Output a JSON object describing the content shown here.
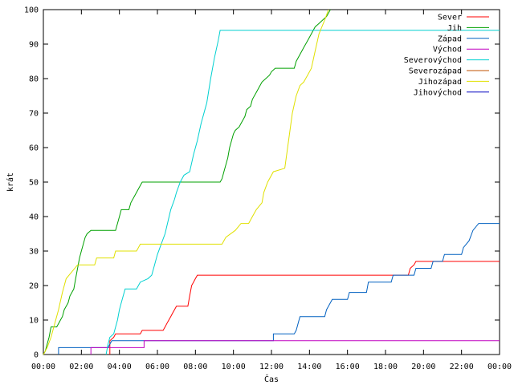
{
  "chart_data": {
    "type": "line",
    "xlabel": "Čas",
    "ylabel": "krát",
    "xlim": [
      0,
      24
    ],
    "ylim": [
      0,
      100
    ],
    "x_ticks": [
      {
        "value": 0,
        "label": "00:00"
      },
      {
        "value": 2,
        "label": "02:00"
      },
      {
        "value": 4,
        "label": "04:00"
      },
      {
        "value": 6,
        "label": "06:00"
      },
      {
        "value": 8,
        "label": "08:00"
      },
      {
        "value": 10,
        "label": "10:00"
      },
      {
        "value": 12,
        "label": "12:00"
      },
      {
        "value": 14,
        "label": "14:00"
      },
      {
        "value": 16,
        "label": "16:00"
      },
      {
        "value": 18,
        "label": "18:00"
      },
      {
        "value": 20,
        "label": "20:00"
      },
      {
        "value": 22,
        "label": "22:00"
      },
      {
        "value": 24,
        "label": "00:00"
      }
    ],
    "y_ticks": [
      0,
      10,
      20,
      30,
      40,
      50,
      60,
      70,
      80,
      90,
      100
    ],
    "grid": false,
    "legend_position": "top-right",
    "series": [
      {
        "name": "Sever",
        "color": "#ff0000",
        "points": [
          [
            3.5,
            0
          ],
          [
            3.5,
            4
          ],
          [
            3.7,
            5
          ],
          [
            3.8,
            6
          ],
          [
            5.1,
            6
          ],
          [
            5.2,
            7
          ],
          [
            6.3,
            7
          ],
          [
            6.4,
            8
          ],
          [
            6.5,
            9
          ],
          [
            6.6,
            10
          ],
          [
            6.7,
            11
          ],
          [
            6.8,
            12
          ],
          [
            6.9,
            13
          ],
          [
            7,
            14
          ],
          [
            7.6,
            14
          ],
          [
            7.7,
            17
          ],
          [
            7.8,
            20
          ],
          [
            7.9,
            21
          ],
          [
            8,
            22
          ],
          [
            8.1,
            23
          ],
          [
            19.2,
            23
          ],
          [
            19.3,
            25
          ],
          [
            19.5,
            26
          ],
          [
            19.6,
            27
          ],
          [
            24,
            27
          ]
        ]
      },
      {
        "name": "Jih",
        "color": "#00a000",
        "points": [
          [
            0,
            0
          ],
          [
            0.1,
            1
          ],
          [
            0.2,
            3
          ],
          [
            0.3,
            5
          ],
          [
            0.4,
            8
          ],
          [
            0.7,
            8
          ],
          [
            0.9,
            10
          ],
          [
            1,
            11
          ],
          [
            1.1,
            13
          ],
          [
            1.3,
            15
          ],
          [
            1.4,
            17
          ],
          [
            1.6,
            19
          ],
          [
            1.7,
            22
          ],
          [
            1.8,
            25
          ],
          [
            1.9,
            28
          ],
          [
            2,
            30
          ],
          [
            2.1,
            32
          ],
          [
            2.2,
            34
          ],
          [
            2.3,
            35
          ],
          [
            2.5,
            36
          ],
          [
            3.8,
            36
          ],
          [
            3.9,
            38
          ],
          [
            4,
            40
          ],
          [
            4.1,
            42
          ],
          [
            4.5,
            42
          ],
          [
            4.6,
            44
          ],
          [
            4.8,
            46
          ],
          [
            4.9,
            47
          ],
          [
            5,
            48
          ],
          [
            5.1,
            49
          ],
          [
            5.2,
            50
          ],
          [
            9.3,
            50
          ],
          [
            9.4,
            51
          ],
          [
            9.5,
            53
          ],
          [
            9.6,
            55
          ],
          [
            9.7,
            57
          ],
          [
            9.8,
            60
          ],
          [
            9.9,
            62
          ],
          [
            10,
            64
          ],
          [
            10.1,
            65
          ],
          [
            10.3,
            66
          ],
          [
            10.4,
            67
          ],
          [
            10.6,
            69
          ],
          [
            10.7,
            71
          ],
          [
            10.9,
            72
          ],
          [
            11,
            74
          ],
          [
            11.2,
            76
          ],
          [
            11.4,
            78
          ],
          [
            11.5,
            79
          ],
          [
            11.7,
            80
          ],
          [
            11.9,
            81
          ],
          [
            12,
            82
          ],
          [
            12.2,
            83
          ],
          [
            13.2,
            83
          ],
          [
            13.3,
            85
          ],
          [
            13.5,
            87
          ],
          [
            13.7,
            89
          ],
          [
            13.9,
            91
          ],
          [
            14.1,
            93
          ],
          [
            14.3,
            95
          ],
          [
            14.5,
            96
          ],
          [
            14.7,
            97
          ],
          [
            14.9,
            98
          ],
          [
            15.1,
            100
          ]
        ]
      },
      {
        "name": "Západ",
        "color": "#0060c0",
        "points": [
          [
            0.8,
            0
          ],
          [
            0.8,
            2
          ],
          [
            3.4,
            2
          ],
          [
            3.5,
            3
          ],
          [
            3.6,
            4
          ],
          [
            12.1,
            4
          ],
          [
            12.1,
            6
          ],
          [
            13.2,
            6
          ],
          [
            13.3,
            7
          ],
          [
            13.5,
            11
          ],
          [
            14.8,
            11
          ],
          [
            14.9,
            13
          ],
          [
            15.2,
            16
          ],
          [
            16,
            16
          ],
          [
            16.1,
            18
          ],
          [
            17,
            18
          ],
          [
            17.1,
            21
          ],
          [
            18.3,
            21
          ],
          [
            18.4,
            23
          ],
          [
            19.5,
            23
          ],
          [
            19.6,
            25
          ],
          [
            20.4,
            25
          ],
          [
            20.5,
            27
          ],
          [
            21,
            27
          ],
          [
            21.1,
            29
          ],
          [
            22,
            29
          ],
          [
            22.1,
            31
          ],
          [
            22.4,
            33
          ],
          [
            22.6,
            36
          ],
          [
            22.9,
            38
          ],
          [
            24,
            38
          ]
        ]
      },
      {
        "name": "Východ",
        "color": "#c000c0",
        "points": [
          [
            2.5,
            0
          ],
          [
            2.5,
            2
          ],
          [
            5.3,
            2
          ],
          [
            5.3,
            4
          ],
          [
            24,
            4
          ]
        ]
      },
      {
        "name": "Severovýchod",
        "color": "#00d0d0",
        "points": [
          [
            3.3,
            0
          ],
          [
            3.4,
            3
          ],
          [
            3.5,
            5
          ],
          [
            3.7,
            6
          ],
          [
            3.9,
            10
          ],
          [
            4,
            13
          ],
          [
            4.1,
            15
          ],
          [
            4.2,
            17
          ],
          [
            4.3,
            19
          ],
          [
            4.9,
            19
          ],
          [
            5.1,
            21
          ],
          [
            5.5,
            22
          ],
          [
            5.7,
            23
          ],
          [
            5.8,
            25
          ],
          [
            6,
            29
          ],
          [
            6.2,
            32
          ],
          [
            6.4,
            35
          ],
          [
            6.7,
            42
          ],
          [
            6.9,
            45
          ],
          [
            7,
            47
          ],
          [
            7.2,
            50
          ],
          [
            7.4,
            52
          ],
          [
            7.7,
            53
          ],
          [
            7.9,
            58
          ],
          [
            8.1,
            62
          ],
          [
            8.3,
            67
          ],
          [
            8.6,
            73
          ],
          [
            8.8,
            80
          ],
          [
            9,
            86
          ],
          [
            9.2,
            91
          ],
          [
            9.3,
            94
          ],
          [
            24,
            94
          ]
        ]
      },
      {
        "name": "Severozápad",
        "color": "#c05000",
        "points": []
      },
      {
        "name": "Jihozápad",
        "color": "#e0e000",
        "points": [
          [
            0,
            0
          ],
          [
            0.2,
            2
          ],
          [
            0.4,
            5
          ],
          [
            0.6,
            9
          ],
          [
            0.8,
            13
          ],
          [
            1,
            18
          ],
          [
            1.2,
            22
          ],
          [
            1.5,
            24
          ],
          [
            1.8,
            26
          ],
          [
            2.7,
            26
          ],
          [
            2.8,
            28
          ],
          [
            3.7,
            28
          ],
          [
            3.8,
            30
          ],
          [
            4.9,
            30
          ],
          [
            5.1,
            32
          ],
          [
            9.4,
            32
          ],
          [
            9.6,
            34
          ],
          [
            10.1,
            36
          ],
          [
            10.4,
            38
          ],
          [
            10.8,
            38
          ],
          [
            11,
            40
          ],
          [
            11.2,
            42
          ],
          [
            11.5,
            44
          ],
          [
            11.6,
            47
          ],
          [
            11.8,
            50
          ],
          [
            12.1,
            53
          ],
          [
            12.7,
            54
          ],
          [
            12.9,
            62
          ],
          [
            13.1,
            70
          ],
          [
            13.3,
            75
          ],
          [
            13.5,
            78
          ],
          [
            13.7,
            79
          ],
          [
            13.9,
            81
          ],
          [
            14.1,
            83
          ],
          [
            14.3,
            88
          ],
          [
            14.5,
            93
          ],
          [
            14.8,
            97
          ],
          [
            15,
            100
          ]
        ]
      },
      {
        "name": "Jihovýchod",
        "color": "#0000c0",
        "points": []
      }
    ]
  }
}
